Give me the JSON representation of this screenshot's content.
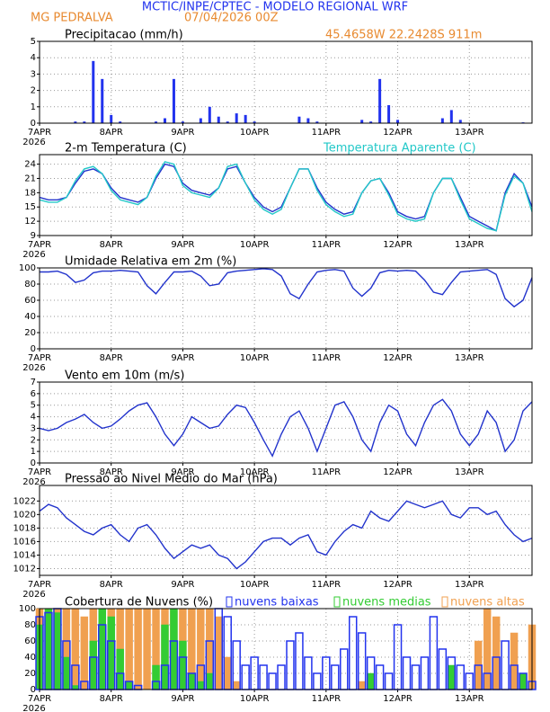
{
  "header": {
    "title": "MCTIC/INPE/CPTEC - MODELO REGIONAL WRF",
    "location": "MG PEDRALVA",
    "run": "07/04/2026 00Z",
    "coords": "45.4658W 22.2428S 911m"
  },
  "chart_data": [
    {
      "type": "bar",
      "title": "Precipitacao (mm/h)",
      "color": "#2233ee",
      "x": [
        7,
        7.125,
        7.25,
        7.375,
        7.5,
        7.625,
        7.75,
        7.875,
        8,
        8.125,
        8.25,
        8.375,
        8.5,
        8.625,
        8.75,
        8.875,
        9,
        9.125,
        9.25,
        9.375,
        9.5,
        9.625,
        9.75,
        9.875,
        10,
        10.125,
        10.25,
        10.375,
        10.5,
        10.625,
        10.75,
        10.875,
        11,
        11.125,
        11.25,
        11.375,
        11.5,
        11.625,
        11.75,
        11.875,
        12,
        12.125,
        12.25,
        12.375,
        12.5,
        12.625,
        12.75,
        12.875,
        13,
        13.125,
        13.25,
        13.375,
        13.5,
        13.625,
        13.75,
        13.875
      ],
      "values": [
        0,
        0,
        0,
        0,
        0.1,
        0.1,
        3.8,
        2.7,
        0.5,
        0.1,
        0,
        0,
        0,
        0.1,
        0.3,
        2.7,
        0.1,
        0,
        0.3,
        1.0,
        0.4,
        0.1,
        0.6,
        0.5,
        0.1,
        0,
        0,
        0,
        0,
        0.4,
        0.3,
        0.1,
        0,
        0,
        0,
        0,
        0.2,
        0.1,
        2.7,
        1.1,
        0.2,
        0,
        0,
        0,
        0,
        0.3,
        0.8,
        0.2,
        0,
        0,
        0,
        0,
        0,
        0,
        0.05,
        0
      ],
      "xlim": [
        7,
        13.875
      ],
      "ylim": [
        0,
        5
      ],
      "yticks": [
        0,
        1,
        2,
        3,
        4,
        5
      ],
      "xticks": [
        {
          "value": 7,
          "label": "7APR"
        },
        {
          "value": 8,
          "label": "8APR"
        },
        {
          "value": 9,
          "label": "9APR"
        },
        {
          "value": 10,
          "label": "10APR"
        },
        {
          "value": 11,
          "label": "11APR"
        },
        {
          "value": 12,
          "label": "12APR"
        },
        {
          "value": 13,
          "label": "13APR"
        }
      ],
      "year_label": "2026",
      "grid": true
    },
    {
      "type": "line",
      "title": "2-m Temperatura (C)",
      "x": [
        7,
        7.125,
        7.25,
        7.375,
        7.5,
        7.625,
        7.75,
        7.875,
        8,
        8.125,
        8.25,
        8.375,
        8.5,
        8.625,
        8.75,
        8.875,
        9,
        9.125,
        9.25,
        9.375,
        9.5,
        9.625,
        9.75,
        9.875,
        10,
        10.125,
        10.25,
        10.375,
        10.5,
        10.625,
        10.75,
        10.875,
        11,
        11.125,
        11.25,
        11.375,
        11.5,
        11.625,
        11.75,
        11.875,
        12,
        12.125,
        12.25,
        12.375,
        12.5,
        12.625,
        12.75,
        12.875,
        13,
        13.125,
        13.25,
        13.375,
        13.5,
        13.625,
        13.75,
        13.875
      ],
      "series": [
        {
          "color": "#2233cc",
          "values": [
            17,
            16.5,
            16.5,
            17,
            20,
            22.5,
            23,
            22,
            19,
            17,
            16.5,
            16,
            17,
            21,
            24,
            23.5,
            20,
            18.5,
            18,
            17.5,
            19,
            23,
            23.5,
            20,
            17,
            15,
            14,
            15,
            19,
            23,
            23,
            19,
            16,
            14.5,
            13.5,
            14,
            18,
            20.5,
            21,
            18,
            14,
            13,
            12.5,
            13,
            18,
            21,
            21,
            17,
            13,
            12,
            11,
            10,
            18,
            22,
            20,
            15
          ]
        },
        {
          "name": "Temperatura Aparente (C)",
          "color": "#22c8c8",
          "values": [
            16.5,
            16,
            16,
            17,
            20.5,
            23,
            23.5,
            22,
            18.5,
            16.5,
            16,
            15.5,
            17,
            21.5,
            24.5,
            24,
            19.5,
            18,
            17.5,
            17,
            19,
            23.5,
            24,
            20,
            16.5,
            14.5,
            13.5,
            14.5,
            19,
            23,
            23,
            18.5,
            15.5,
            14,
            13,
            13.5,
            18,
            20.5,
            21,
            17.5,
            13.5,
            12.5,
            12,
            12.5,
            18,
            21,
            21,
            16.5,
            12.5,
            11.5,
            10.5,
            10,
            17.5,
            21.5,
            20,
            14
          ]
        }
      ],
      "xlim": [
        7,
        13.875
      ],
      "ylim": [
        9,
        26
      ],
      "yticks": [
        9,
        12,
        15,
        18,
        21,
        24
      ],
      "xticks": [
        {
          "value": 7,
          "label": "7APR"
        },
        {
          "value": 8,
          "label": "8APR"
        },
        {
          "value": 9,
          "label": "9APR"
        },
        {
          "value": 10,
          "label": "10APR"
        },
        {
          "value": 11,
          "label": "11APR"
        },
        {
          "value": 12,
          "label": "12APR"
        },
        {
          "value": 13,
          "label": "13APR"
        }
      ],
      "year_label": "2026",
      "grid": true
    },
    {
      "type": "line",
      "title": "Umidade Relativa em 2m (%)",
      "x": [
        7,
        7.125,
        7.25,
        7.375,
        7.5,
        7.625,
        7.75,
        7.875,
        8,
        8.125,
        8.25,
        8.375,
        8.5,
        8.625,
        8.75,
        8.875,
        9,
        9.125,
        9.25,
        9.375,
        9.5,
        9.625,
        9.75,
        9.875,
        10,
        10.125,
        10.25,
        10.375,
        10.5,
        10.625,
        10.75,
        10.875,
        11,
        11.125,
        11.25,
        11.375,
        11.5,
        11.625,
        11.75,
        11.875,
        12,
        12.125,
        12.25,
        12.375,
        12.5,
        12.625,
        12.75,
        12.875,
        13,
        13.125,
        13.25,
        13.375,
        13.5,
        13.625,
        13.75,
        13.875
      ],
      "series": [
        {
          "color": "#2233cc",
          "values": [
            95,
            95,
            96,
            92,
            82,
            85,
            94,
            96,
            96,
            97,
            96,
            95,
            78,
            68,
            82,
            95,
            95,
            96,
            90,
            78,
            80,
            94,
            96,
            97,
            98,
            99,
            98,
            90,
            68,
            62,
            80,
            95,
            97,
            98,
            96,
            75,
            65,
            75,
            94,
            97,
            96,
            97,
            96,
            85,
            70,
            67,
            82,
            95,
            96,
            97,
            98,
            92,
            62,
            52,
            60,
            88
          ]
        }
      ],
      "xlim": [
        7,
        13.875
      ],
      "ylim": [
        0,
        100
      ],
      "yticks": [
        0,
        20,
        40,
        60,
        80,
        100
      ],
      "xticks": [
        {
          "value": 7,
          "label": "7APR"
        },
        {
          "value": 8,
          "label": "8APR"
        },
        {
          "value": 9,
          "label": "9APR"
        },
        {
          "value": 10,
          "label": "10APR"
        },
        {
          "value": 11,
          "label": "11APR"
        },
        {
          "value": 12,
          "label": "12APR"
        },
        {
          "value": 13,
          "label": "13APR"
        }
      ],
      "year_label": "2026",
      "grid": true
    },
    {
      "type": "line",
      "title": "Vento em 10m (m/s)",
      "x": [
        7,
        7.125,
        7.25,
        7.375,
        7.5,
        7.625,
        7.75,
        7.875,
        8,
        8.125,
        8.25,
        8.375,
        8.5,
        8.625,
        8.75,
        8.875,
        9,
        9.125,
        9.25,
        9.375,
        9.5,
        9.625,
        9.75,
        9.875,
        10,
        10.125,
        10.25,
        10.375,
        10.5,
        10.625,
        10.75,
        10.875,
        11,
        11.125,
        11.25,
        11.375,
        11.5,
        11.625,
        11.75,
        11.875,
        12,
        12.125,
        12.25,
        12.375,
        12.5,
        12.625,
        12.75,
        12.875,
        13,
        13.125,
        13.25,
        13.375,
        13.5,
        13.625,
        13.75,
        13.875
      ],
      "series": [
        {
          "color": "#2233cc",
          "values": [
            3,
            2.8,
            3,
            3.5,
            3.8,
            4.2,
            3.5,
            3.0,
            3.2,
            3.8,
            4.5,
            5.0,
            5.2,
            4.0,
            2.5,
            1.5,
            2.5,
            4.0,
            3.5,
            3.0,
            3.2,
            4.2,
            5.0,
            4.8,
            3.5,
            2.0,
            0.6,
            2.5,
            4.0,
            4.5,
            3.0,
            1.0,
            3.0,
            5.0,
            5.3,
            4.0,
            2.0,
            1.0,
            3.5,
            5.0,
            4.5,
            2.5,
            1.5,
            3.5,
            5.0,
            5.5,
            4.5,
            2.5,
            1.5,
            2.5,
            4.5,
            3.5,
            1.0,
            2.0,
            4.5,
            5.3
          ]
        }
      ],
      "xlim": [
        7,
        13.875
      ],
      "ylim": [
        0,
        7
      ],
      "yticks": [
        0,
        1,
        2,
        3,
        4,
        5,
        6,
        7
      ],
      "xticks": [
        {
          "value": 7,
          "label": "7APR"
        },
        {
          "value": 8,
          "label": "8APR"
        },
        {
          "value": 9,
          "label": "9APR"
        },
        {
          "value": 10,
          "label": "10APR"
        },
        {
          "value": 11,
          "label": "11APR"
        },
        {
          "value": 12,
          "label": "12APR"
        },
        {
          "value": 13,
          "label": "13APR"
        }
      ],
      "year_label": "2026",
      "grid": true
    },
    {
      "type": "line",
      "title": "Pressao ao Nivel Medio do Mar (hPa)",
      "x": [
        7,
        7.125,
        7.25,
        7.375,
        7.5,
        7.625,
        7.75,
        7.875,
        8,
        8.125,
        8.25,
        8.375,
        8.5,
        8.625,
        8.75,
        8.875,
        9,
        9.125,
        9.25,
        9.375,
        9.5,
        9.625,
        9.75,
        9.875,
        10,
        10.125,
        10.25,
        10.375,
        10.5,
        10.625,
        10.75,
        10.875,
        11,
        11.125,
        11.25,
        11.375,
        11.5,
        11.625,
        11.75,
        11.875,
        12,
        12.125,
        12.25,
        12.375,
        12.5,
        12.625,
        12.75,
        12.875,
        13,
        13.125,
        13.25,
        13.375,
        13.5,
        13.625,
        13.75,
        13.875
      ],
      "series": [
        {
          "color": "#2233cc",
          "values": [
            1020.5,
            1021.5,
            1021,
            1019.5,
            1018.5,
            1017.5,
            1017,
            1018,
            1018.5,
            1017,
            1016,
            1018,
            1018.5,
            1017,
            1015,
            1013.5,
            1014.5,
            1015.5,
            1015,
            1015.5,
            1014,
            1013.5,
            1012,
            1013,
            1014.5,
            1016,
            1016.5,
            1016.5,
            1015.5,
            1016.5,
            1017,
            1014.5,
            1014,
            1016,
            1017.5,
            1018.5,
            1018,
            1020.5,
            1019.5,
            1019,
            1020.5,
            1022,
            1021.5,
            1021,
            1021.5,
            1022,
            1020,
            1019.5,
            1021,
            1021,
            1020,
            1020.5,
            1018.5,
            1017,
            1016,
            1016.5
          ]
        }
      ],
      "xlim": [
        7,
        13.875
      ],
      "ylim": [
        1011,
        1024.3
      ],
      "yticks": [
        1012,
        1014,
        1016,
        1018,
        1020,
        1022
      ],
      "xticks": [
        {
          "value": 7,
          "label": "7APR"
        },
        {
          "value": 8,
          "label": "8APR"
        },
        {
          "value": 9,
          "label": "9APR"
        },
        {
          "value": 10,
          "label": "10APR"
        },
        {
          "value": 11,
          "label": "11APR"
        },
        {
          "value": 12,
          "label": "12APR"
        },
        {
          "value": 13,
          "label": "13APR"
        }
      ],
      "year_label": "2026",
      "grid": true
    },
    {
      "type": "bar",
      "title": "Cobertura de Nuvens (%)",
      "x": [
        7,
        7.125,
        7.25,
        7.375,
        7.5,
        7.625,
        7.75,
        7.875,
        8,
        8.125,
        8.25,
        8.375,
        8.5,
        8.625,
        8.75,
        8.875,
        9,
        9.125,
        9.25,
        9.375,
        9.5,
        9.625,
        9.75,
        9.875,
        10,
        10.125,
        10.25,
        10.375,
        10.5,
        10.625,
        10.75,
        10.875,
        11,
        11.125,
        11.25,
        11.375,
        11.5,
        11.625,
        11.75,
        11.875,
        12,
        12.125,
        12.25,
        12.375,
        12.5,
        12.625,
        12.75,
        12.875,
        13,
        13.125,
        13.25,
        13.375,
        13.5,
        13.625,
        13.75,
        13.875
      ],
      "series": [
        {
          "name": "nuvens baixas",
          "color": "#2233ee",
          "outline": true,
          "values": [
            90,
            95,
            100,
            60,
            30,
            10,
            40,
            80,
            60,
            20,
            10,
            5,
            0,
            10,
            30,
            60,
            40,
            20,
            30,
            60,
            100,
            90,
            60,
            30,
            40,
            30,
            20,
            30,
            60,
            70,
            40,
            20,
            40,
            30,
            50,
            90,
            70,
            40,
            30,
            20,
            80,
            40,
            30,
            40,
            90,
            50,
            40,
            30,
            20,
            30,
            20,
            40,
            60,
            30,
            20,
            10
          ]
        },
        {
          "name": "nuvens medias",
          "color": "#33cc33",
          "outline": false,
          "values": [
            80,
            100,
            95,
            40,
            5,
            0,
            60,
            100,
            90,
            50,
            10,
            0,
            0,
            30,
            80,
            100,
            60,
            20,
            10,
            20,
            0,
            0,
            0,
            0,
            0,
            0,
            0,
            0,
            0,
            0,
            0,
            0,
            0,
            0,
            0,
            0,
            0,
            20,
            0,
            0,
            0,
            0,
            0,
            0,
            0,
            0,
            30,
            0,
            0,
            0,
            0,
            0,
            0,
            0,
            20,
            0
          ]
        },
        {
          "name": "nuvens altas",
          "color": "#f0a050",
          "outline": false,
          "values": [
            100,
            100,
            100,
            100,
            100,
            90,
            100,
            100,
            100,
            100,
            100,
            100,
            100,
            100,
            100,
            100,
            100,
            100,
            100,
            100,
            90,
            40,
            10,
            0,
            0,
            0,
            0,
            0,
            0,
            0,
            0,
            0,
            0,
            0,
            0,
            0,
            10,
            0,
            0,
            0,
            0,
            0,
            0,
            0,
            0,
            0,
            0,
            0,
            0,
            60,
            100,
            90,
            0,
            70,
            0,
            80
          ]
        }
      ],
      "xlim": [
        7,
        13.875
      ],
      "ylim": [
        0,
        100
      ],
      "yticks": [
        0,
        20,
        40,
        60,
        80,
        100
      ],
      "xticks": [
        {
          "value": 7,
          "label": "7APR"
        },
        {
          "value": 8,
          "label": "8APR"
        },
        {
          "value": 9,
          "label": "9APR"
        },
        {
          "value": 10,
          "label": "10APR"
        },
        {
          "value": 11,
          "label": "11APR"
        },
        {
          "value": 12,
          "label": "12APR"
        },
        {
          "value": 13,
          "label": "13APR"
        }
      ],
      "year_label": "2026",
      "grid": true
    }
  ]
}
